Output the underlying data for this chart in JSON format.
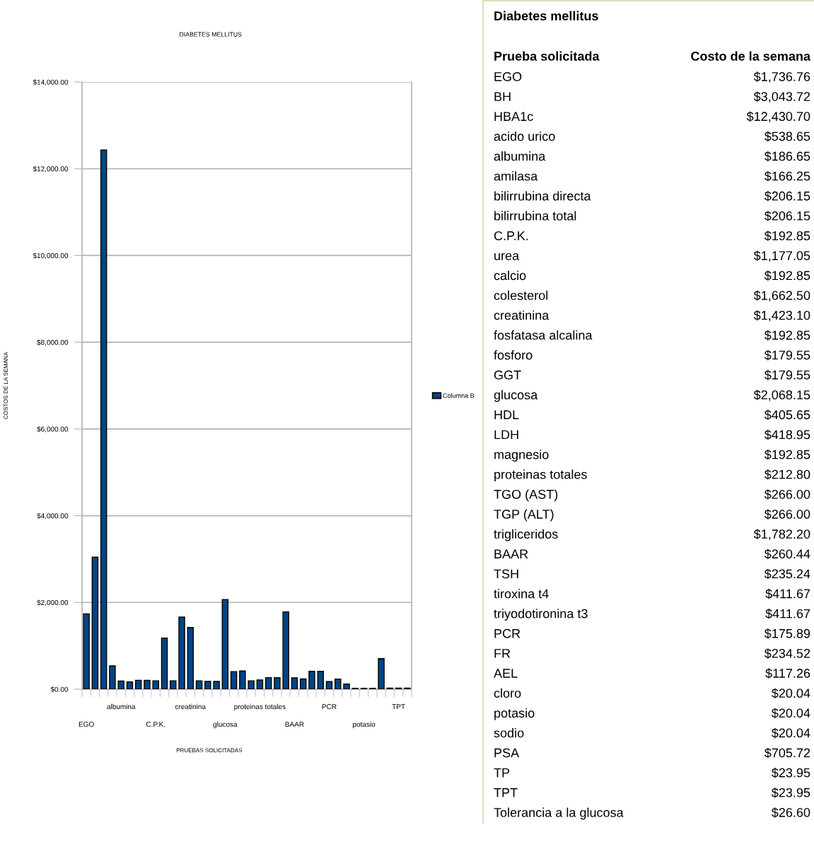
{
  "chart_data": [
    {
      "type": "bar",
      "title": "DIABETES MELLITUS",
      "xlabel": "PRUEBAS SOLICITADAS",
      "ylabel": "COSTOS DE LA SEMANA",
      "categories": [
        "EGO",
        null,
        null,
        null,
        "albumina",
        null,
        null,
        null,
        "C.P.K.",
        null,
        null,
        null,
        "creatinina",
        null,
        null,
        null,
        "glucosa",
        null,
        null,
        null,
        "proteinas totales",
        null,
        null,
        null,
        "BAAR",
        null,
        null,
        null,
        "PCR",
        null,
        null,
        null,
        "potasio",
        null,
        null,
        null,
        "TPT",
        null
      ],
      "series": [
        {
          "name": "Columna B",
          "color": "#004586",
          "values": [
            1736.76,
            3043.72,
            12430.7,
            538.65,
            186.65,
            166.25,
            206.15,
            206.15,
            192.85,
            1177.05,
            192.85,
            1662.5,
            1423.1,
            192.85,
            179.55,
            179.55,
            2068.15,
            405.65,
            418.95,
            192.85,
            212.8,
            266.0,
            266.0,
            1782.2,
            260.44,
            235.24,
            411.67,
            411.67,
            175.89,
            234.52,
            117.26,
            20.04,
            20.04,
            20.04,
            705.72,
            23.95,
            23.95,
            26.6
          ]
        }
      ],
      "ylim": [
        0,
        14000
      ],
      "yticks": [
        {
          "value": 0,
          "label": "$0.00"
        },
        {
          "value": 2000,
          "label": "$2,000.00"
        },
        {
          "value": 4000,
          "label": "$4,000.00"
        },
        {
          "value": 6000,
          "label": "$6,000.00"
        },
        {
          "value": 8000,
          "label": "$8,000.00"
        },
        {
          "value": 10000,
          "label": "$10,000.00"
        },
        {
          "value": 12000,
          "label": "$12,000.00"
        },
        {
          "value": 14000,
          "label": "$14,000.00"
        }
      ],
      "grid": "y",
      "legend": "right"
    },
    {
      "type": "other",
      "title": "Diabetes mellitus",
      "annotations": [
        "Prueba solicitada",
        "Costo de la semana",
        "EGO",
        "$1,736.76",
        "BH",
        "$3,043.72",
        "HBA1c",
        "$12,430.70",
        "acido urico",
        "$538.65",
        "albumina",
        "$186.65",
        "amilasa",
        "$166.25",
        "bilirrubina directa",
        "$206.15",
        "bilirrubina total",
        "$206.15",
        "C.P.K.",
        "$192.85",
        "urea",
        "$1,177.05",
        "calcio",
        "$192.85",
        "colesterol",
        "$1,662.50",
        "creatinina",
        "$1,423.10",
        "fosfatasa alcalina",
        "$192.85",
        "fosforo",
        "$179.55",
        "GGT",
        "$179.55",
        "glucosa",
        "$2,068.15",
        "HDL",
        "$405.65",
        "LDH",
        "$418.95",
        "magnesio",
        "$192.85",
        "proteinas totales",
        "$212.80",
        "TGO (AST)",
        "$266.00",
        "TGP (ALT)",
        "$266.00",
        "trigliceridos",
        "$1,782.20",
        "BAAR",
        "$260.44",
        "TSH",
        "$235.24",
        "tiroxina t4",
        "$411.67",
        "triyodotironina t3",
        "$411.67",
        "PCR",
        "$175.89",
        "FR",
        "$234.52",
        "AEL",
        "$117.26",
        "cloro",
        "$20.04",
        "potasio",
        "$20.04",
        "sodio",
        "$20.04",
        "PSA",
        "$705.72",
        "TP",
        "$23.95",
        "TPT",
        "$23.95",
        "Tolerancia a la glucosa",
        "$26.60"
      ]
    }
  ]
}
